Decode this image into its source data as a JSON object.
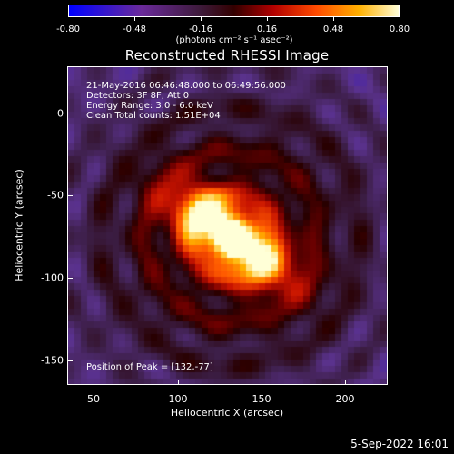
{
  "colorbar": {
    "ticks": [
      "-0.80",
      "-0.48",
      "-0.16",
      "0.16",
      "0.48",
      "0.80"
    ],
    "units": "(photons cm⁻² s⁻¹ asec⁻²)"
  },
  "title": "Reconstructed RHESSI Image",
  "info": {
    "time_range": "21-May-2016 06:46:48.000 to 06:49:56.000",
    "detectors": "Detectors: 3F 8F, Att 0",
    "energy": "Energy Range: 3.0 - 6.0 keV",
    "clean": "Clean     Total counts: 1.51E+04",
    "peak": "Position of Peak = [132,-77]"
  },
  "axes": {
    "xlabel": "Heliocentric X (arcsec)",
    "ylabel": "Heliocentric Y (arcsec)",
    "xticks": [
      "50",
      "100",
      "150",
      "200"
    ],
    "yticks": [
      "0",
      "-50",
      "-100",
      "-150"
    ]
  },
  "footer_date": "5-Sep-2022 16:01",
  "chart_data": {
    "type": "heatmap",
    "title": "Reconstructed RHESSI Image",
    "xlabel": "Heliocentric X (arcsec)",
    "ylabel": "Heliocentric Y (arcsec)",
    "xlim": [
      35,
      225
    ],
    "ylim": [
      -165,
      25
    ],
    "zlim": [
      -0.8,
      0.8
    ],
    "peak": [
      132,
      -77
    ],
    "colormap": [
      "#0000ff",
      "#6a2a9a",
      "#300000",
      "#b10000",
      "#ff4a00",
      "#ffb000",
      "#ffffd8"
    ]
  }
}
